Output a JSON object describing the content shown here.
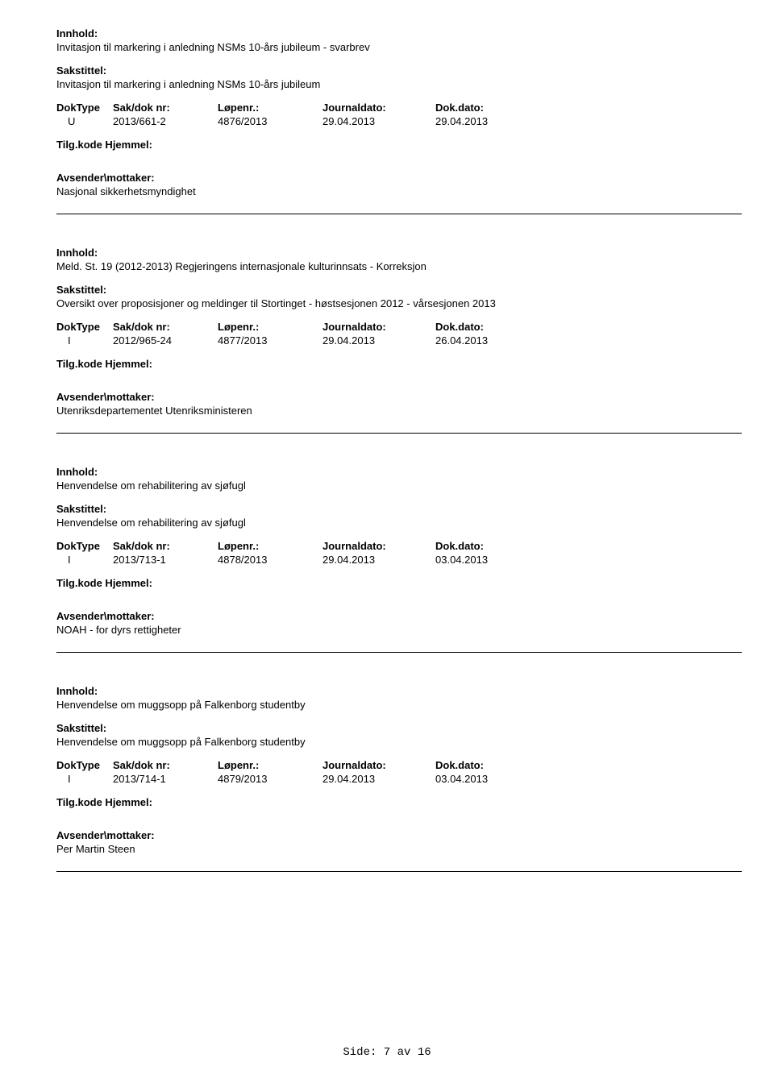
{
  "labels": {
    "innhold": "Innhold:",
    "sakstittel": "Sakstittel:",
    "doktype": "DokType",
    "saknr": "Sak/dok nr:",
    "lopenr": "Løpenr.:",
    "journaldato": "Journaldato:",
    "dokdato": "Dok.dato:",
    "tilgkode": "Tilg.kode Hjemmel:",
    "avsender": "Avsender\\mottaker:"
  },
  "records": [
    {
      "innhold": "Invitasjon til markering i anledning NSMs 10-års jubileum - svarbrev",
      "sakstittel": "Invitasjon til markering i anledning NSMs 10-års jubileum",
      "doktype": "U",
      "saknr": "2013/661-2",
      "lopenr": "4876/2013",
      "journaldato": "29.04.2013",
      "dokdato": "29.04.2013",
      "avsender": "Nasjonal sikkerhetsmyndighet"
    },
    {
      "innhold": "Meld. St. 19 (2012-2013) Regjeringens internasjonale kulturinnsats - Korreksjon",
      "sakstittel": "Oversikt over proposisjoner og meldinger til Stortinget - høstsesjonen 2012 - vårsesjonen 2013",
      "doktype": "I",
      "saknr": "2012/965-24",
      "lopenr": "4877/2013",
      "journaldato": "29.04.2013",
      "dokdato": "26.04.2013",
      "avsender": "Utenriksdepartementet Utenriksministeren"
    },
    {
      "innhold": "Henvendelse om rehabilitering av sjøfugl",
      "sakstittel": "Henvendelse om rehabilitering av sjøfugl",
      "doktype": "I",
      "saknr": "2013/713-1",
      "lopenr": "4878/2013",
      "journaldato": "29.04.2013",
      "dokdato": "03.04.2013",
      "avsender": "NOAH - for dyrs rettigheter"
    },
    {
      "innhold": "Henvendelse om muggsopp på Falkenborg studentby",
      "sakstittel": "Henvendelse om muggsopp på Falkenborg studentby",
      "doktype": "I",
      "saknr": "2013/714-1",
      "lopenr": "4879/2013",
      "journaldato": "29.04.2013",
      "dokdato": "03.04.2013",
      "avsender": "Per Martin Steen"
    }
  ],
  "footer": {
    "side": "Side:",
    "page": "7",
    "av": "av",
    "total": "16"
  }
}
